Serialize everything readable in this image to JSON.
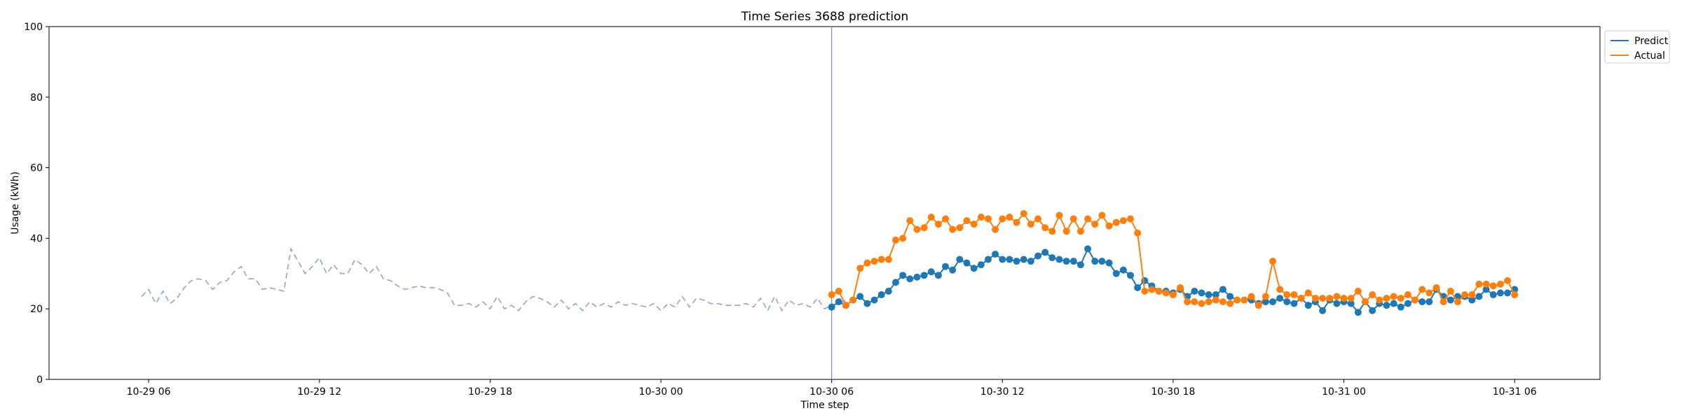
{
  "chart_data": {
    "type": "line",
    "title": "Time Series 3688 prediction",
    "xlabel": "Time step",
    "ylabel": "Usage (kWh)",
    "ylim": [
      0,
      100
    ],
    "yticks": [
      0,
      20,
      40,
      60,
      80,
      100
    ],
    "xlim": [
      "2024-10-29T02:30",
      "2024-10-31T09:00"
    ],
    "xticks": [
      {
        "t": "2024-10-29T06:00",
        "label": "10-29 06"
      },
      {
        "t": "2024-10-29T12:00",
        "label": "10-29 12"
      },
      {
        "t": "2024-10-29T18:00",
        "label": "10-29 18"
      },
      {
        "t": "2024-10-30T00:00",
        "label": "10-30 00"
      },
      {
        "t": "2024-10-30T06:00",
        "label": "10-30 06"
      },
      {
        "t": "2024-10-30T12:00",
        "label": "10-30 12"
      },
      {
        "t": "2024-10-30T18:00",
        "label": "10-30 18"
      },
      {
        "t": "2024-10-31T00:00",
        "label": "10-31 00"
      },
      {
        "t": "2024-10-31T06:00",
        "label": "10-31 06"
      }
    ],
    "forecast_start": "2024-10-30T06:00",
    "grid": false,
    "legend": {
      "position": "top-right"
    },
    "colors": {
      "predict": "#1f77b4",
      "actual": "#ff7f0e",
      "history": "#8fa8c8",
      "divider": "#7b96c8"
    },
    "history": {
      "start": "2024-10-29T05:45",
      "step_minutes": 15,
      "values": [
        23.5,
        25.5,
        21.5,
        25,
        21.5,
        23,
        26,
        28,
        28.5,
        28,
        25.5,
        27.5,
        28,
        30.5,
        32,
        28.5,
        28.5,
        25.5,
        26,
        25.5,
        25,
        37,
        33.5,
        30,
        32,
        34.5,
        30,
        32.5,
        30,
        30,
        34,
        32.5,
        30,
        32,
        28.5,
        28,
        26.5,
        25.5,
        26,
        26.5,
        26,
        26,
        25.5,
        24.5,
        21,
        21,
        21.5,
        20.5,
        22,
        20,
        23.5,
        20,
        21,
        19.5,
        22,
        23.5,
        23,
        22,
        20.5,
        22.5,
        20,
        21.5,
        19.5,
        22,
        20.5,
        21.5,
        20.5,
        22,
        21,
        21.5,
        21,
        20.5,
        21.5,
        19.5,
        21.5,
        20.5,
        23.5,
        20.5,
        23,
        22.5,
        21.5,
        21.5,
        21,
        21,
        21,
        21.5,
        20.5,
        23,
        19.5,
        23.5,
        19.5,
        22.5,
        21,
        21.5,
        20.5,
        23,
        20,
        21,
        21.5,
        22.5
      ]
    },
    "series": [
      {
        "name": "Predict",
        "start": "2024-10-30T06:00",
        "step_minutes": 15,
        "values": [
          20.5,
          22,
          21,
          22.5,
          23.5,
          21.5,
          22.5,
          24,
          25,
          27.5,
          29.5,
          28.5,
          29,
          29.5,
          30.5,
          29.5,
          32,
          31,
          34,
          33,
          31.5,
          32.5,
          34,
          35.5,
          34,
          34,
          33.5,
          34,
          33.5,
          35,
          36,
          34.5,
          34,
          33.5,
          33.5,
          32.5,
          37,
          33.5,
          33.5,
          33,
          30,
          31,
          29.5,
          26,
          28,
          26.5,
          25,
          25,
          24.5,
          25.5,
          23.5,
          25,
          24.5,
          24,
          24,
          25.5,
          23.5,
          22.5,
          22.5,
          22.5,
          21.5,
          22,
          22,
          23,
          22,
          21.5,
          23,
          21,
          22,
          19.5,
          22.5,
          21.5,
          22,
          21.5,
          19,
          22,
          19.5,
          21.5,
          21,
          21.5,
          20.5,
          21.5,
          22.5,
          22,
          22,
          25.5,
          23.5,
          22.5,
          23.5,
          23.5,
          22.5,
          23.5,
          25.5,
          24,
          24.5,
          24.5,
          25.5
        ]
      },
      {
        "name": "Actual",
        "start": "2024-10-30T06:00",
        "step_minutes": 15,
        "values": [
          24,
          25,
          21,
          22.5,
          31.5,
          33,
          33.5,
          34,
          34,
          39.5,
          40,
          45,
          42.5,
          43,
          46,
          44,
          45.5,
          42.5,
          43,
          45,
          44,
          46,
          45.5,
          42.5,
          45.5,
          46,
          44.5,
          47,
          44,
          45.5,
          43,
          42,
          46.5,
          42,
          45.5,
          42,
          45.5,
          44,
          46.5,
          43.5,
          44.5,
          45,
          45.5,
          41.5,
          25,
          25.5,
          25,
          24.5,
          24,
          26,
          22,
          22,
          21.5,
          22,
          22.5,
          22,
          21.5,
          22.5,
          22.5,
          23.5,
          21,
          23.5,
          33.5,
          25.5,
          24,
          24,
          23,
          24.5,
          23,
          23,
          23,
          23.5,
          23,
          23,
          25,
          22,
          24,
          22.5,
          23,
          23.5,
          23,
          24,
          22.5,
          25.5,
          24.5,
          26,
          22,
          25,
          22,
          24,
          24,
          27,
          27,
          26.5,
          27,
          28,
          24
        ]
      }
    ]
  }
}
